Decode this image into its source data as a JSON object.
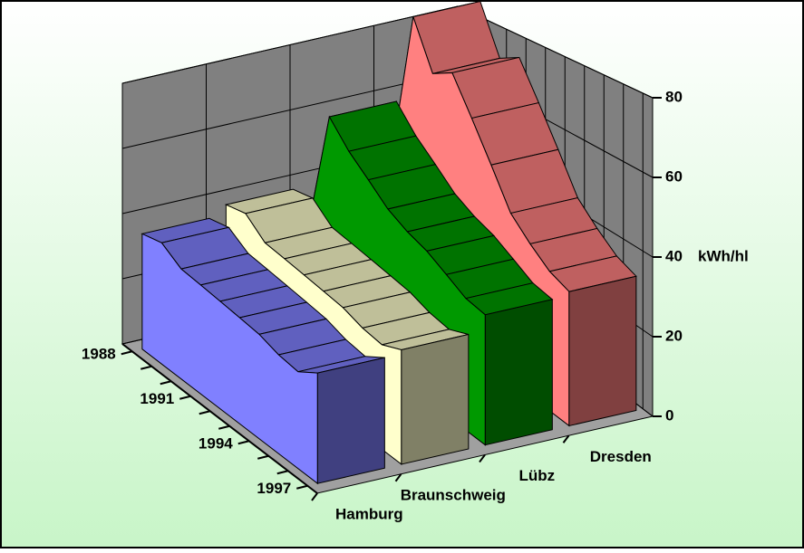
{
  "chart_data": {
    "type": "area3d",
    "categories": [
      "1988",
      null,
      null,
      "1991",
      null,
      null,
      "1994",
      null,
      null,
      "1997"
    ],
    "series": [
      {
        "name": "Hamburg",
        "color": "#8080ff",
        "values": [
          35,
          36,
          32,
          31,
          30,
          29,
          28,
          26,
          25,
          28
        ]
      },
      {
        "name": "Braunschweig",
        "color": "#ffffcc",
        "values": [
          38,
          39,
          34,
          33,
          32,
          31,
          30,
          28,
          27,
          29
        ]
      },
      {
        "name": "Lübz",
        "color": "#009900",
        "values": [
          28,
          62,
          55,
          50,
          45,
          42,
          40,
          37,
          34,
          33
        ]
      },
      {
        "name": "Dresden",
        "color": "#ff8080",
        "values": [
          45,
          86,
          72,
          75,
          65,
          55,
          45,
          40,
          36,
          34
        ]
      }
    ],
    "ylabel": "kWh/hl",
    "ylim": [
      0,
      80
    ],
    "yticks": [
      0,
      20,
      40,
      60,
      80
    ],
    "grid": true
  }
}
